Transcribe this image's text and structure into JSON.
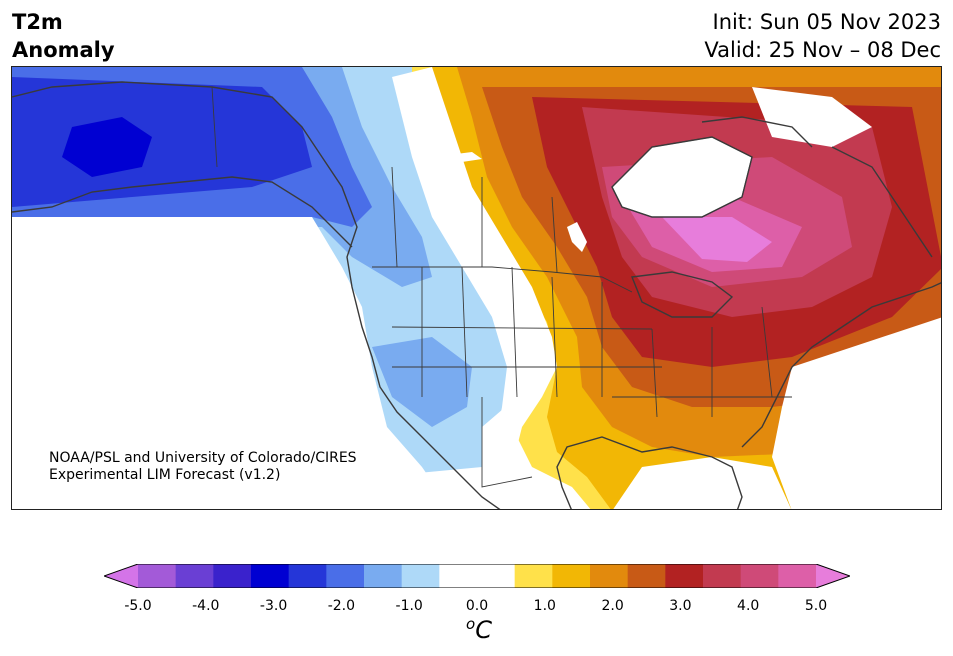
{
  "header": {
    "variable": "T2m",
    "subtitle": "Anomaly",
    "init": "Init: Sun 05 Nov 2023",
    "valid": "Valid: 25 Nov – 08 Dec"
  },
  "credit": {
    "line1": "NOAA/PSL and University of Colorado/CIRES",
    "line2": "Experimental LIM Forecast (v1.2)"
  },
  "colorbar": {
    "unit_super": "o",
    "unit_base": "C",
    "ticks": [
      "-5.0",
      "-4.0",
      "-3.0",
      "-2.0",
      "-1.0",
      "0.0",
      "1.0",
      "2.0",
      "3.0",
      "4.0",
      "5.0"
    ],
    "colors": [
      "#d474e8",
      "#a35ad8",
      "#6a3fd4",
      "#3a22cc",
      "#0000d2",
      "#2536d8",
      "#4a6ee8",
      "#79abf0",
      "#aed9f8",
      "#ffffff",
      "#ffffff",
      "#ffe14a",
      "#f2b705",
      "#e28a0d",
      "#c85a16",
      "#b22222",
      "#c23a50",
      "#cf4a78",
      "#dd5fa8",
      "#e77ddb"
    ]
  },
  "map": {
    "region": "North America",
    "field": "2m temperature anomaly",
    "patterns": [
      {
        "name": "alaska-cold-core",
        "anomaly_c": -3.5
      },
      {
        "name": "western-canada-cold",
        "anomaly_c": -2.0
      },
      {
        "name": "western-us-cool",
        "anomaly_c": -1.0
      },
      {
        "name": "plains-warm-edge",
        "anomaly_c": 1.0
      },
      {
        "name": "eastern-us-warm",
        "anomaly_c": 2.5
      },
      {
        "name": "great-lakes-warm",
        "anomaly_c": 3.0
      },
      {
        "name": "quebec-warm-core",
        "anomaly_c": 4.5
      },
      {
        "name": "arctic-warm",
        "anomaly_c": 2.0
      }
    ]
  }
}
